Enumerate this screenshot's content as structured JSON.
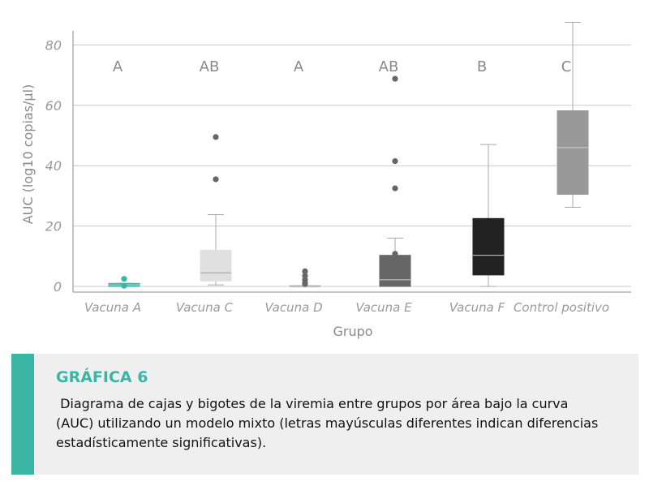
{
  "chart_data": {
    "type": "boxplot",
    "title": "",
    "xlabel": "Grupo",
    "ylabel": "AUC (log10 copias/µl)",
    "ylim": [
      0,
      85
    ],
    "yticks": [
      0,
      20,
      40,
      60,
      80
    ],
    "grid": true,
    "categories": [
      "Vacuna A",
      "Vacuna C",
      "Vacuna D",
      "Vacuna E",
      "Vacuna F",
      "Control positivo"
    ],
    "groups": [
      {
        "category": "Vacuna A",
        "letter": "A",
        "color": "#3ab5a6",
        "min": 0,
        "q1": 0,
        "median": 0.5,
        "q3": 1,
        "max": 1,
        "outliers": [
          0.2,
          2.5
        ]
      },
      {
        "category": "Vacuna C",
        "letter": "AB",
        "color": "#e0e0e0",
        "min": 0.5,
        "q1": 1.8,
        "median": 4.5,
        "q3": 12,
        "max": 23.8,
        "outliers": [
          35.5,
          49.5
        ]
      },
      {
        "category": "Vacuna D",
        "letter": "A",
        "color": "#d8d8d8",
        "min": 0,
        "q1": 0,
        "median": 0.1,
        "q3": 0.3,
        "max": 0.3,
        "outliers": [
          0.8,
          1.2,
          2.2,
          3.5,
          5
        ]
      },
      {
        "category": "Vacuna E",
        "letter": "AB",
        "color": "#666666",
        "min": 0,
        "q1": 0,
        "median": 2.2,
        "q3": 10.3,
        "max": 16,
        "outliers": [
          10.8,
          32.5,
          41.5,
          68.8
        ]
      },
      {
        "category": "Vacuna F",
        "letter": "B",
        "color": "#222222",
        "min": 0,
        "q1": 3.8,
        "median": 10.3,
        "q3": 22.5,
        "max": 47,
        "outliers": []
      },
      {
        "category": "Control positivo",
        "letter": "C",
        "color": "#999999",
        "min": 26.2,
        "q1": 30.5,
        "median": 46,
        "q3": 58.2,
        "max": 87.5,
        "outliers": []
      }
    ]
  },
  "caption": {
    "title": "GRÁFICA 6",
    "text": " Diagrama de cajas y bigotes de la viremia entre grupos por área bajo la curva\n(AUC) utilizando un modelo mixto (letras mayúsculas diferentes indican diferencias\nestadísticamente significativas).",
    "accent_color": "#3ab5a6"
  }
}
